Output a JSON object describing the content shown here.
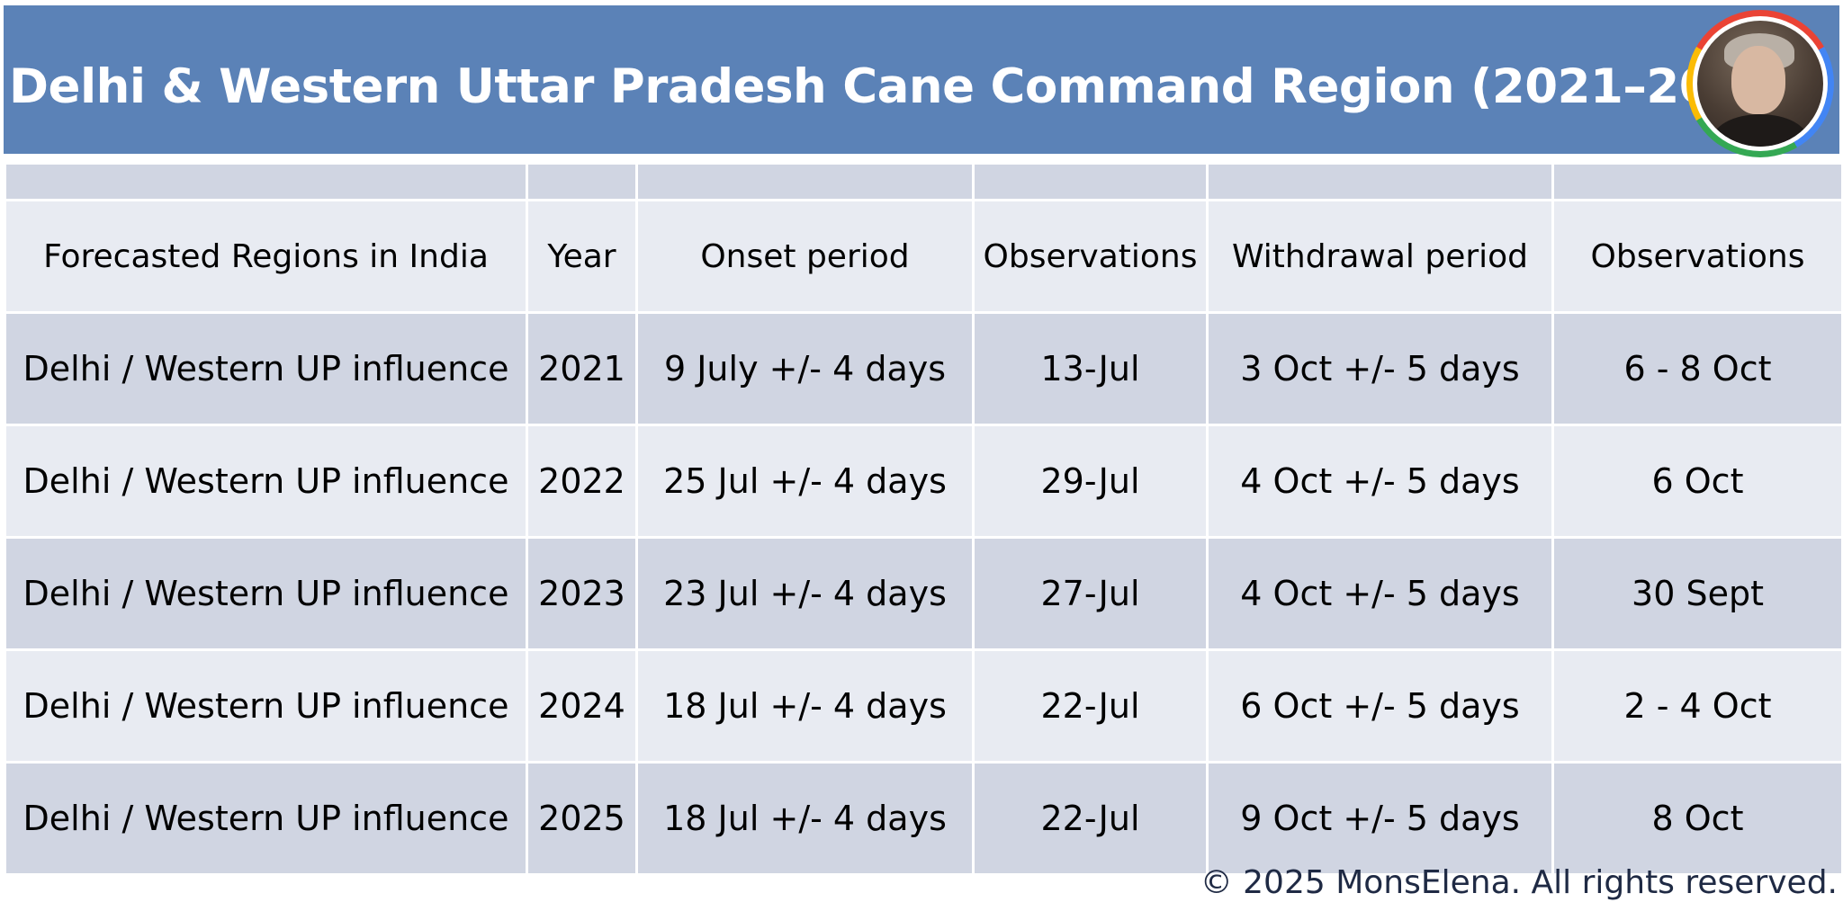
{
  "title": "Delhi & Western Uttar Pradesh Cane Command Region (2021–2025)",
  "avatar_icon": "user-avatar-photo",
  "colors": {
    "header_bg": "#5b82b7",
    "row_dark": "#d0d5e2",
    "row_light": "#e8ebf2",
    "avatar_ring": [
      "#ea4335",
      "#4285f4",
      "#34a853",
      "#fbbc05"
    ]
  },
  "table": {
    "headers": [
      "Forecasted Regions in India",
      "Year",
      "Onset period",
      "Observations",
      "Withdrawal period",
      "Observations"
    ],
    "rows": [
      [
        "Delhi / Western UP influence",
        "2021",
        "9 July +/- 4 days",
        "13-Jul",
        "3 Oct +/- 5 days",
        "6 - 8 Oct"
      ],
      [
        "Delhi / Western UP influence",
        "2022",
        "25 Jul +/- 4 days",
        "29-Jul",
        "4 Oct +/- 5 days",
        "6 Oct"
      ],
      [
        "Delhi / Western UP influence",
        "2023",
        "23 Jul +/- 4 days",
        "27-Jul",
        "4 Oct +/- 5 days",
        "30 Sept"
      ],
      [
        "Delhi / Western UP influence",
        "2024",
        "18 Jul +/- 4 days",
        "22-Jul",
        "6 Oct +/- 5 days",
        "2 - 4 Oct"
      ],
      [
        "Delhi / Western UP influence",
        "2025",
        "18 Jul +/- 4 days",
        "22-Jul",
        "9 Oct +/- 5 days",
        "8 Oct"
      ]
    ]
  },
  "footer": "© 2025 MonsElena. All rights reserved."
}
